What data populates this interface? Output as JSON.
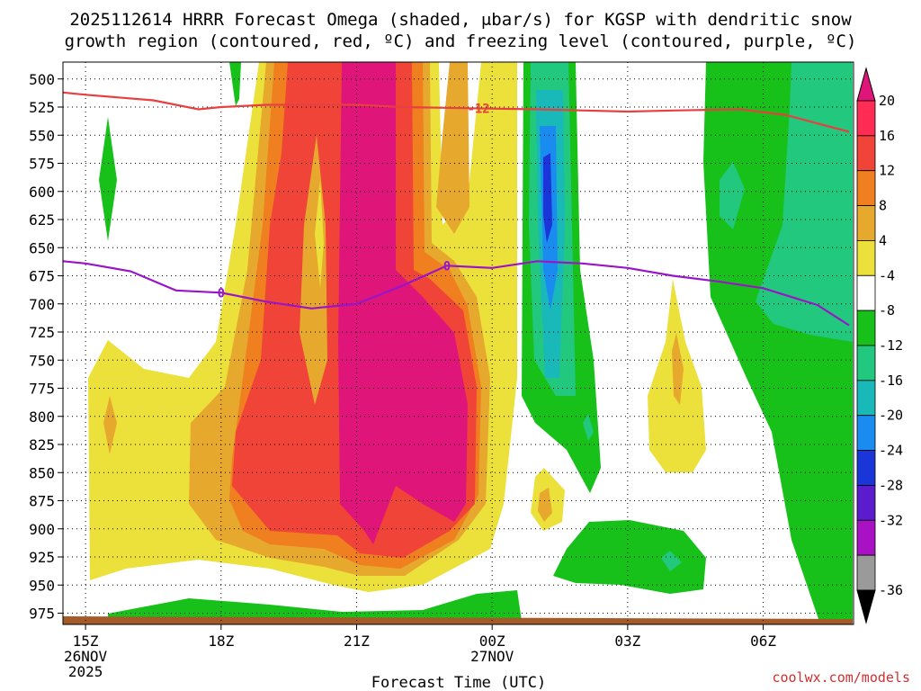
{
  "title_line1": "2025112614 HRRR Forecast Omega (shaded, μbar/s) for KGSP with dendritic snow",
  "title_line2": "growth region (contoured, red, ºC) and freezing level (contoured, purple, ºC)",
  "credit": "coolwx.com/models",
  "credit_color": "#d03030",
  "chart_data": {
    "type": "heatmap",
    "xlabel": "Forecast Time (UTC)",
    "ylabel": "",
    "yscale": "pressure",
    "ylim": [
      985,
      485
    ],
    "x_ticks": [
      {
        "label": "15Z",
        "sub1": "26NOV",
        "sub2": "2025",
        "hour": 15
      },
      {
        "label": "18Z",
        "sub1": "",
        "sub2": "",
        "hour": 18
      },
      {
        "label": "21Z",
        "sub1": "",
        "sub2": "",
        "hour": 21
      },
      {
        "label": "00Z",
        "sub1": "27NOV",
        "sub2": "",
        "hour": 24
      },
      {
        "label": "03Z",
        "sub1": "",
        "sub2": "",
        "hour": 27
      },
      {
        "label": "06Z",
        "sub1": "",
        "sub2": "",
        "hour": 30
      }
    ],
    "y_ticks": [
      "500",
      "525",
      "550",
      "575",
      "600",
      "625",
      "650",
      "675",
      "700",
      "725",
      "750",
      "775",
      "800",
      "825",
      "850",
      "875",
      "900",
      "925",
      "950",
      "975"
    ],
    "grid": true,
    "colorbar": {
      "ticks": [
        "20",
        "16",
        "12",
        "8",
        "4",
        "-4",
        "-8",
        "-12",
        "-16",
        "-20",
        "-24",
        "-28",
        "-32",
        "-36"
      ],
      "colors": [
        "#ff2d55",
        "#f04438",
        "#ef7f1f",
        "#e6a92e",
        "#ece03a",
        "#ffffff",
        "#17c11a",
        "#21c87e",
        "#1ab9b9",
        "#1a8cf0",
        "#1a35d8",
        "#5a1ccc",
        "#a812c4",
        "#9a9a9a"
      ],
      "top_color": "#e0157a",
      "bottom_color": "#000000"
    },
    "series": [
      {
        "name": "-12",
        "color": "#e84040",
        "points": [
          [
            14.5,
            512
          ],
          [
            15.0,
            514
          ],
          [
            16.5,
            519
          ],
          [
            17.5,
            527
          ],
          [
            18.0,
            525
          ],
          [
            19.0,
            523
          ],
          [
            21.0,
            523
          ],
          [
            22.0,
            525
          ],
          [
            23.5,
            526
          ],
          [
            25.0,
            527
          ],
          [
            27.0,
            529
          ],
          [
            28.0,
            528
          ],
          [
            29.5,
            527
          ],
          [
            30.5,
            532
          ],
          [
            31.9,
            547
          ]
        ]
      },
      {
        "name": "0",
        "color": "#9a15c8",
        "points": [
          [
            14.5,
            662
          ],
          [
            15.0,
            664
          ],
          [
            16.0,
            671
          ],
          [
            17.0,
            688
          ],
          [
            18.0,
            690
          ],
          [
            19.0,
            698
          ],
          [
            20.0,
            704
          ],
          [
            21.0,
            700
          ],
          [
            22.0,
            684
          ],
          [
            23.0,
            666
          ],
          [
            24.0,
            668
          ],
          [
            25.0,
            662
          ],
          [
            26.0,
            664
          ],
          [
            27.0,
            668
          ],
          [
            28.0,
            675
          ],
          [
            29.0,
            680
          ],
          [
            30.0,
            686
          ],
          [
            31.2,
            701
          ],
          [
            31.9,
            719
          ]
        ]
      }
    ]
  }
}
